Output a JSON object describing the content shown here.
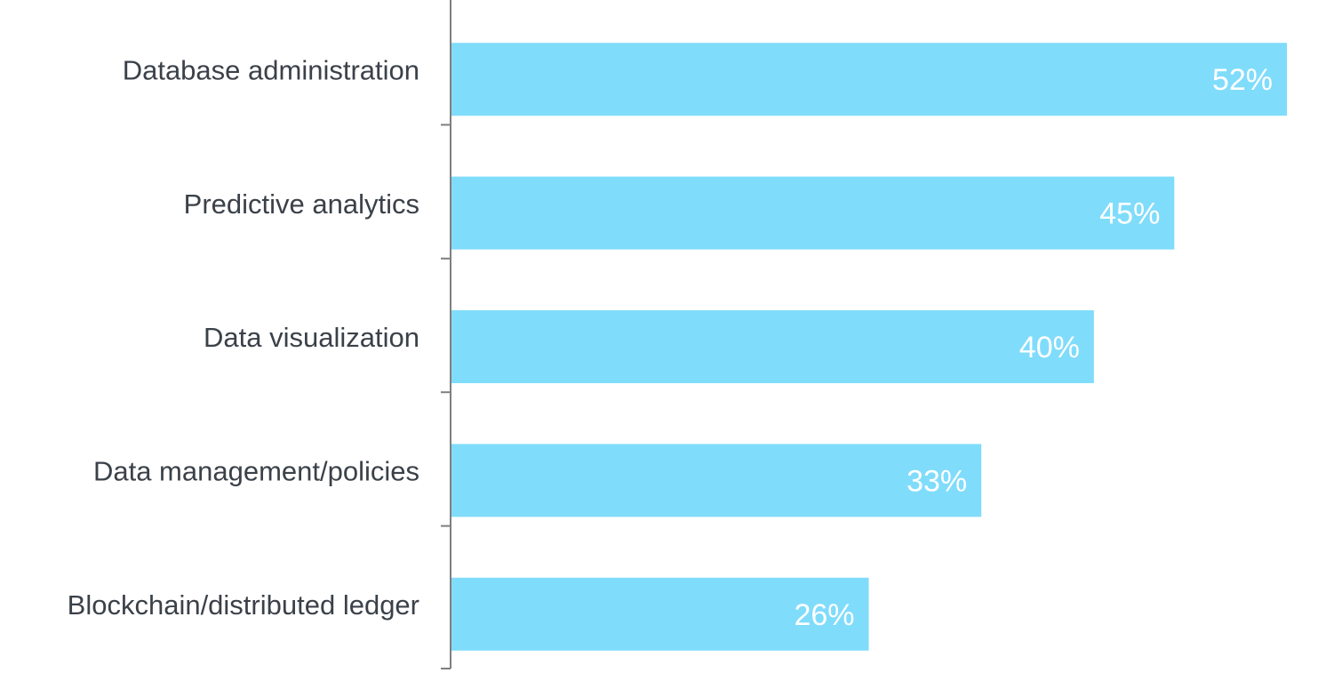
{
  "chart_data": {
    "type": "bar",
    "orientation": "horizontal",
    "categories": [
      "Database administration",
      "Predictive analytics",
      "Data visualization",
      "Data management/policies",
      "Blockchain/distributed ledger"
    ],
    "values": [
      52,
      45,
      40,
      33,
      26
    ],
    "value_labels": [
      "52%",
      "45%",
      "40%",
      "33%",
      "26%"
    ],
    "unit": "%",
    "xlim": [
      0,
      52
    ],
    "grid": false,
    "legend": "none",
    "bar_color": "#80dcfb",
    "label_color": "#3b4149",
    "value_label_color": "#ffffff"
  }
}
